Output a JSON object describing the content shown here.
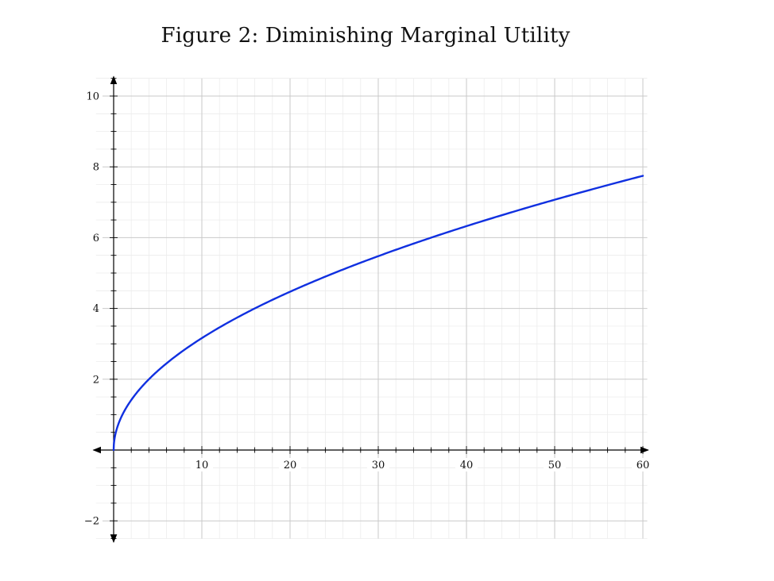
{
  "title": "Figure 2: Diminishing Marginal Utility",
  "chart_data": {
    "type": "line",
    "title": "Figure 2: Diminishing Marginal Utility",
    "xlabel": "",
    "ylabel": "",
    "xlim": [
      -2,
      60.5
    ],
    "ylim": [
      -2.5,
      10.5
    ],
    "x_ticks": [
      10,
      20,
      30,
      40,
      50,
      60
    ],
    "y_ticks": [
      -2,
      2,
      4,
      6,
      8,
      10
    ],
    "x_tick_labels": [
      "10",
      "20",
      "30",
      "40",
      "50",
      "60"
    ],
    "y_tick_labels": [
      "−2",
      "2",
      "4",
      "6",
      "8",
      "10"
    ],
    "grid": true,
    "series": [
      {
        "color": "#1030e0",
        "x": [
          0,
          0.25,
          1,
          2,
          3,
          4,
          5,
          6,
          8,
          10,
          12,
          15,
          18,
          20,
          22,
          25,
          28,
          30,
          33,
          36,
          40,
          44,
          48,
          50,
          54,
          58,
          60
        ],
        "y": [
          0,
          0.5,
          1.0,
          1.414,
          1.732,
          2.0,
          2.236,
          2.449,
          2.828,
          3.162,
          3.464,
          3.873,
          4.243,
          4.472,
          4.69,
          5.0,
          5.292,
          5.477,
          5.745,
          6.0,
          6.325,
          6.633,
          6.928,
          7.071,
          7.348,
          7.616,
          7.746
        ]
      }
    ]
  }
}
